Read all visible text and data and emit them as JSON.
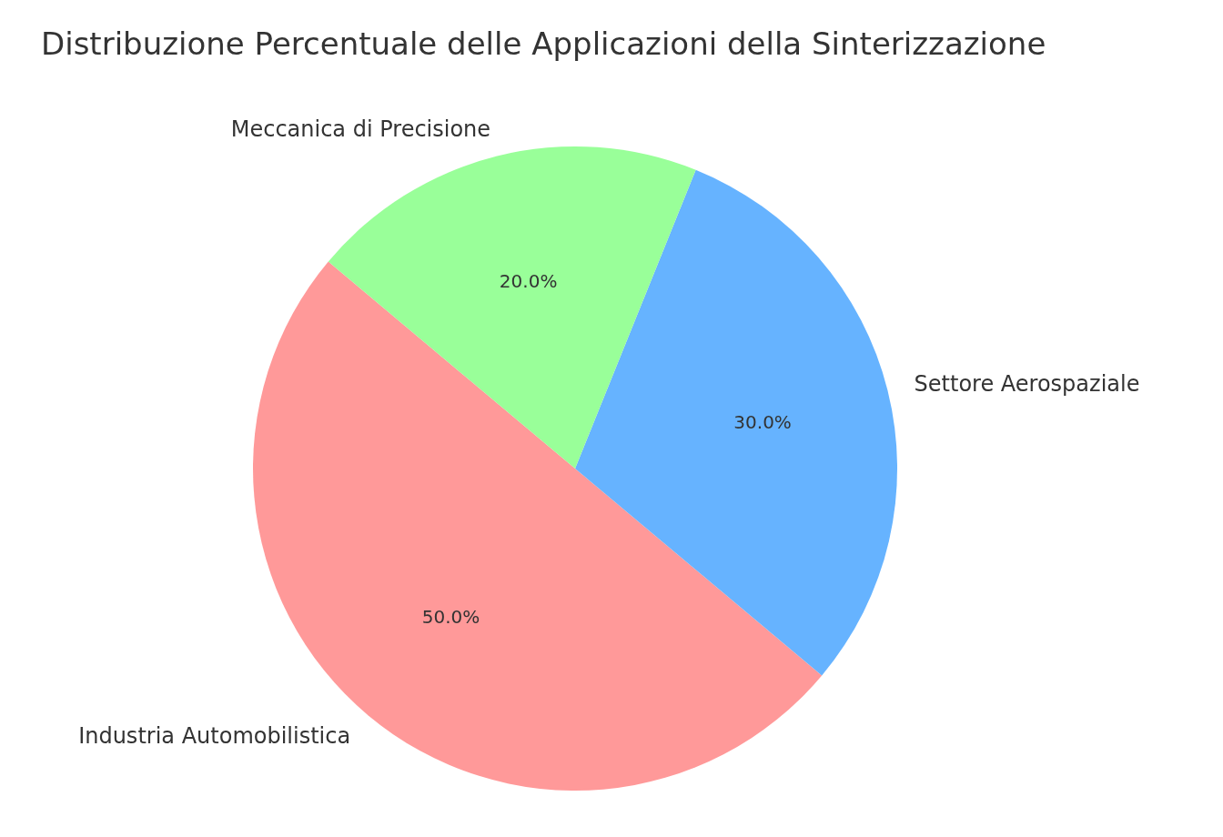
{
  "chart_data": {
    "type": "pie",
    "title": "Distribuzione Percentuale delle Applicazioni della Sinterizzazione",
    "categories": [
      "Industria Automobilistica",
      "Settore Aerospaziale",
      "Meccanica di Precisione"
    ],
    "values": [
      50,
      30,
      20
    ],
    "colors": [
      "#ff9999",
      "#66b3ff",
      "#99ff99"
    ],
    "value_labels": [
      "50.0%",
      "30.0%",
      "20.0%"
    ]
  }
}
